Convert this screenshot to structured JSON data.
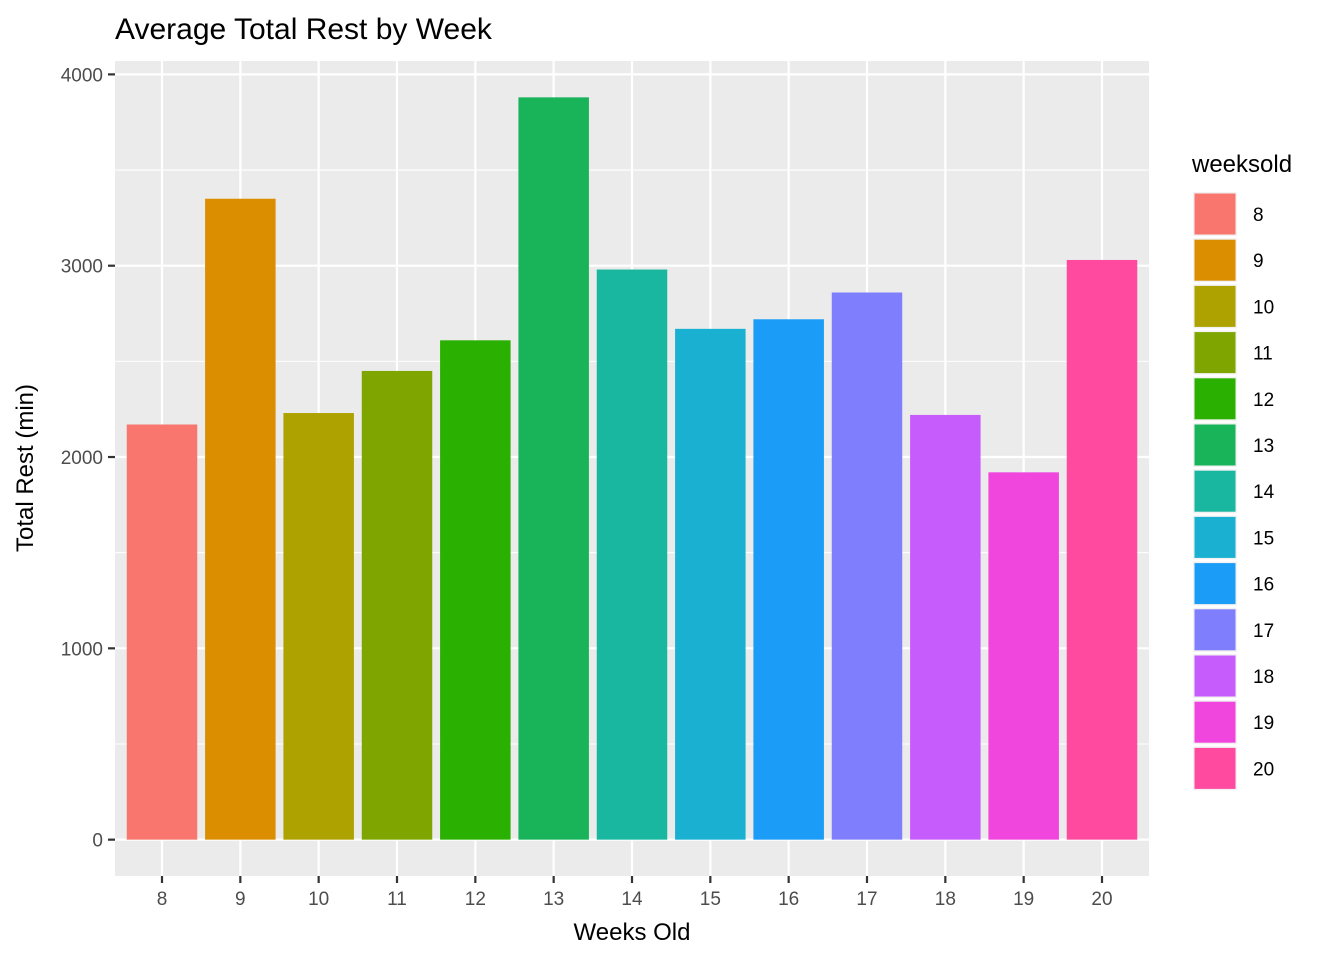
{
  "chart_data": {
    "type": "bar",
    "title": "Average Total Rest by Week",
    "xlabel": "Weeks Old",
    "ylabel": "Total Rest (min)",
    "categories": [
      "8",
      "9",
      "10",
      "11",
      "12",
      "13",
      "14",
      "15",
      "16",
      "17",
      "18",
      "19",
      "20"
    ],
    "values": [
      2170,
      3350,
      2230,
      2450,
      2610,
      3880,
      2980,
      2670,
      2720,
      2860,
      2220,
      1920,
      3030
    ],
    "colors": [
      "#F8766D",
      "#DB8E00",
      "#AEA200",
      "#7FA600",
      "#2AB000",
      "#19B35A",
      "#1AB7A0",
      "#19B0D2",
      "#1A9CF7",
      "#7F7FFD",
      "#C65CFB",
      "#F146DE",
      "#FF4AA0"
    ],
    "ylim": [
      -190,
      4070
    ],
    "yticks": [
      0,
      1000,
      2000,
      3000,
      4000
    ],
    "grid": true,
    "legend": {
      "title": "weeksold",
      "position": "right"
    }
  }
}
